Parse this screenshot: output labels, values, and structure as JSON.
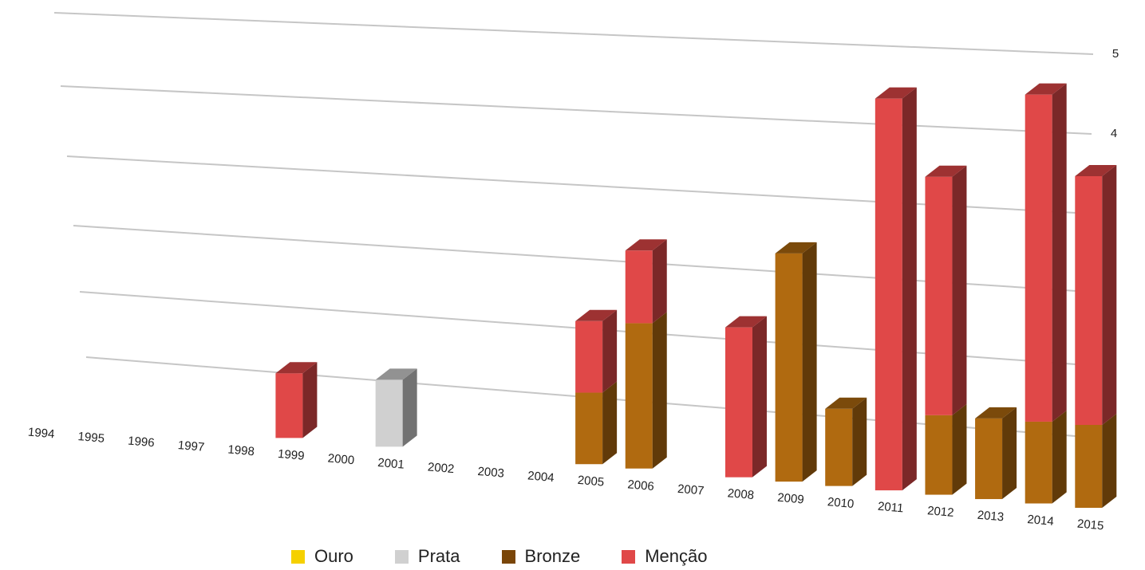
{
  "chart_data": {
    "type": "bar",
    "stacked": true,
    "three_d": true,
    "title": "",
    "xlabel": "",
    "ylabel": "",
    "ylim": [
      0,
      5
    ],
    "y_ticks": [
      "0",
      "1",
      "2",
      "3",
      "4",
      "5"
    ],
    "grid": true,
    "legend_position": "bottom",
    "categories": [
      "1994",
      "1995",
      "1996",
      "1997",
      "1998",
      "1999",
      "2000",
      "2001",
      "2002",
      "2003",
      "2004",
      "2005",
      "2006",
      "2007",
      "2008",
      "2009",
      "2010",
      "2011",
      "2012",
      "2013",
      "2014",
      "2015"
    ],
    "series": [
      {
        "name": "Ouro",
        "color": "#f5d000",
        "values": [
          0,
          0,
          0,
          0,
          0,
          0,
          0,
          0,
          0,
          0,
          0,
          0,
          0,
          0,
          0,
          0,
          0,
          0,
          0,
          0,
          0,
          0
        ]
      },
      {
        "name": "Prata",
        "color": "#d0d0d0",
        "values": [
          0,
          0,
          0,
          0,
          0,
          0,
          0,
          1,
          0,
          0,
          0,
          0,
          0,
          0,
          0,
          0,
          0,
          0,
          0,
          0,
          0,
          0
        ]
      },
      {
        "name": "Bronze",
        "color": "#b06a10",
        "values": [
          0,
          0,
          0,
          0,
          0,
          0,
          0,
          0,
          0,
          0,
          0,
          1,
          2,
          0,
          0,
          3,
          1,
          0,
          1,
          1,
          1,
          1
        ]
      },
      {
        "name": "Menção",
        "color": "#e04848",
        "values": [
          0,
          0,
          0,
          0,
          0,
          1,
          0,
          0,
          0,
          0,
          0,
          1,
          1,
          0,
          2,
          0,
          0,
          5,
          3,
          0,
          4,
          3
        ]
      }
    ]
  }
}
